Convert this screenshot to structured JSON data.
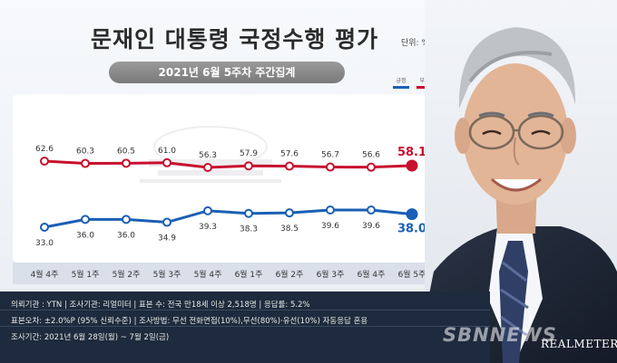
{
  "header": {
    "title": "문재인 대통령 국정수행 평가",
    "unit": "단위: %",
    "subtitle": "2021년 6월 5주차 주간집계"
  },
  "legend": {
    "positive_label": "긍정",
    "negative_label": "부정"
  },
  "colors": {
    "negative": "#c8102e",
    "positive": "#1a5fb4",
    "navy": "#1e2a3d"
  },
  "chart_data": {
    "type": "line",
    "title": "문재인 대통령 국정수행 평가",
    "subtitle": "2021년 6월 5주차 주간집계",
    "unit": "%",
    "categories": [
      "4월 4주",
      "5월 1주",
      "5월 2주",
      "5월 3주",
      "5월 4주",
      "6월 1주",
      "6월 2주",
      "6월 3주",
      "6월 4주",
      "6월 5주"
    ],
    "series": [
      {
        "name": "부정",
        "color": "#c8102e",
        "values": [
          62.6,
          60.3,
          60.5,
          61.0,
          56.3,
          57.9,
          57.6,
          56.7,
          56.6,
          58.1
        ]
      },
      {
        "name": "긍정",
        "color": "#1a5fb4",
        "values": [
          33.0,
          36.0,
          36.0,
          34.9,
          39.3,
          38.3,
          38.5,
          39.6,
          39.6,
          38.0
        ]
      }
    ],
    "legend": "top-right"
  },
  "info": {
    "line1": "의뢰기관 : YTN   |   조사기관: 리얼미터   |   표본 수: 전국 만18세 이상 2,518명   |   응답률: 5.2%",
    "line2": "표본오차: ±2.0%P (95% 신뢰수준)   |   조사방법: 무선 전화면접(10%),무선(80%)·유선(10%) 자동응답 혼용",
    "line3": "조사기간: 2021년 6월 28일(월) ~ 7월 2일(금)"
  },
  "watermark": "SBNNEWS",
  "brand": "REALMETER"
}
